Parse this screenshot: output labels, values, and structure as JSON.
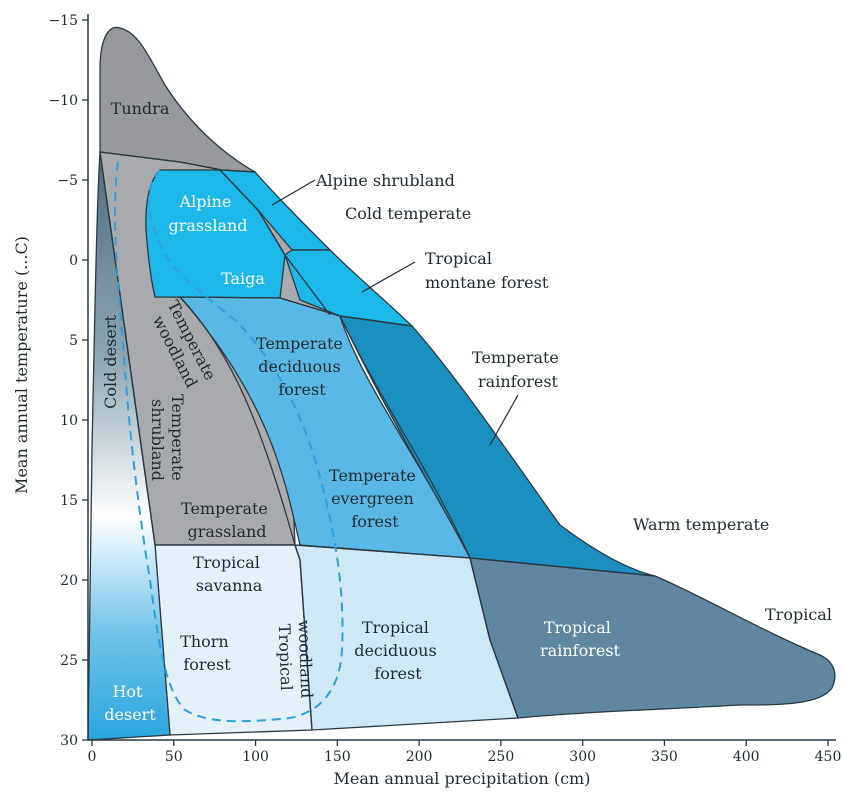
{
  "axes": {
    "x_title": "Mean annual precipitation (cm)",
    "y_title": "Mean annual temperature (...C)",
    "x_ticks": [
      "0",
      "50",
      "100",
      "150",
      "200",
      "250",
      "300",
      "350",
      "400",
      "450"
    ],
    "y_ticks": [
      "−15",
      "−10",
      "−5",
      "0",
      "5",
      "10",
      "15",
      "20",
      "25",
      "30"
    ]
  },
  "biomes": {
    "tundra": "Tundra",
    "alpine_grassland": [
      "Alpine",
      "grassland"
    ],
    "taiga": "Taiga",
    "temperate_woodland": [
      "Temperate",
      "woodland"
    ],
    "temperate_shrubland": [
      "Temperate",
      "shrubland"
    ],
    "cold_desert": "Cold desert",
    "temperate_deciduous_forest": [
      "Temperate",
      "deciduous",
      "forest"
    ],
    "temperate_evergreen_forest": [
      "Temperate",
      "evergreen",
      "forest"
    ],
    "temperate_grassland": [
      "Temperate",
      "grassland"
    ],
    "tropical_savanna": [
      "Tropical",
      "savanna"
    ],
    "thorn_forest": [
      "Thorn",
      "forest"
    ],
    "tropical_woodland": [
      "Tropical",
      "woodland"
    ],
    "tropical_deciduous_forest": [
      "Tropical",
      "deciduous",
      "forest"
    ],
    "tropical_rainforest": [
      "Tropical",
      "rainforest"
    ],
    "hot_desert": [
      "Hot",
      "desert"
    ]
  },
  "callouts": {
    "alpine_shrubland": "Alpine shrubland",
    "tropical_montane_forest": [
      "Tropical",
      "montane forest"
    ],
    "temperate_rainforest": [
      "Temperate",
      "rainforest"
    ]
  },
  "zones": {
    "cold_temperate": "Cold temperate",
    "warm_temperate": "Warm temperate",
    "tropical": "Tropical"
  },
  "colors": {
    "gray": "#a9aaad",
    "tundra_gray": "#97999c",
    "light_cyan": "#1cb8ea",
    "med_blue": "#5ab8e6",
    "dark_blue": "#1b8fc0",
    "steel": "#5f879f",
    "pale": "#cfe8f6",
    "very_pale": "#e4f1f9",
    "dashed": "#2f9fdd"
  }
}
